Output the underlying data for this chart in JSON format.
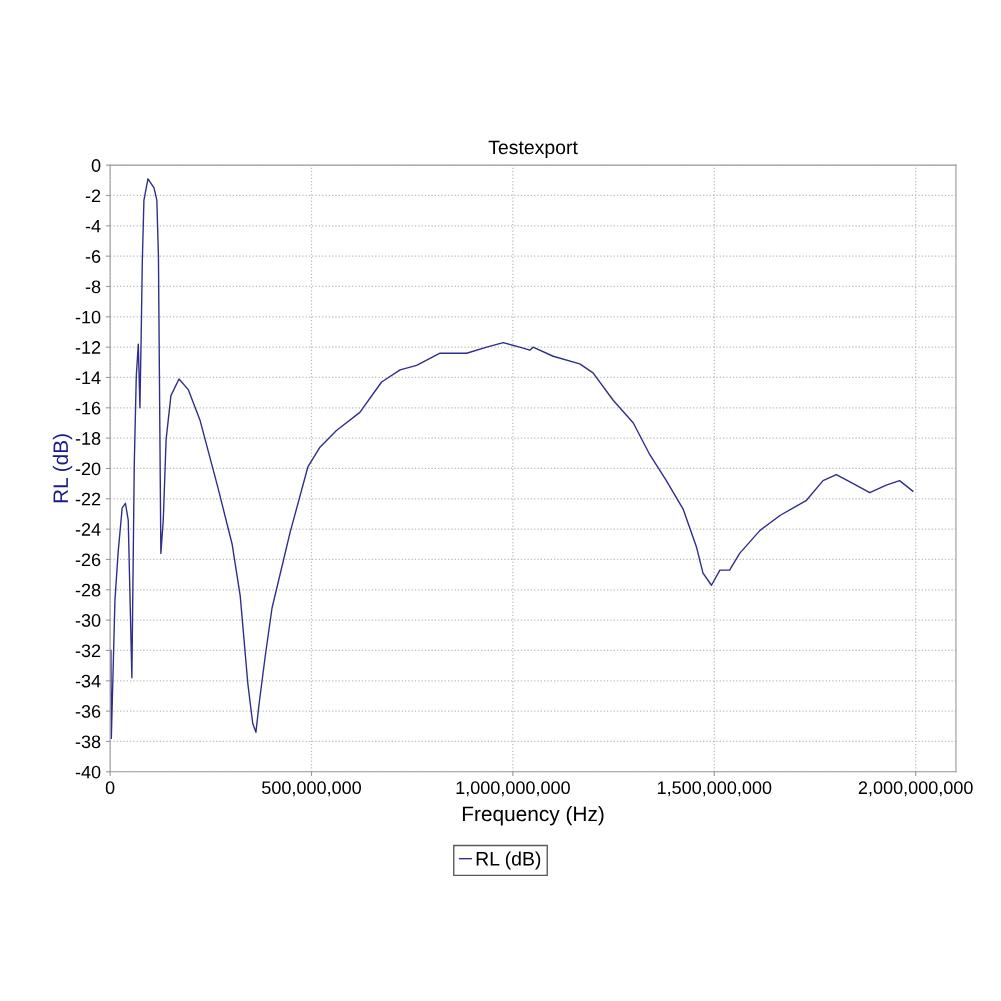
{
  "chart_data": {
    "type": "line",
    "title": "Testexport",
    "xlabel": "Frequency (Hz)",
    "ylabel": "RL (dB)",
    "x": [
      2000000,
      3000000,
      12000000,
      20000000,
      30000000,
      38000000,
      45000000,
      54000000,
      60000000,
      65000000,
      70000000,
      74000000,
      77000000,
      80000000,
      84000000,
      94000000,
      109000000,
      116000000,
      120000000,
      126000000,
      132000000,
      139000000,
      151000000,
      171000000,
      194000000,
      223000000,
      268000000,
      303000000,
      323000000,
      342000000,
      354000000,
      362000000,
      370000000,
      385000000,
      402000000,
      447000000,
      491000000,
      521000000,
      562000000,
      620000000,
      674000000,
      720000000,
      761000000,
      819000000,
      885000000,
      935000000,
      976000000,
      1017000000,
      1042000000,
      1050000000,
      1100000000,
      1166000000,
      1199000000,
      1249000000,
      1299000000,
      1338000000,
      1381000000,
      1423000000,
      1456000000,
      1472000000,
      1493000000,
      1514000000,
      1538000000,
      1563000000,
      1613000000,
      1663000000,
      1729000000,
      1770000000,
      1803000000,
      1845000000,
      1886000000,
      1927000000,
      1960000000,
      1993000000
    ],
    "series": [
      {
        "name": "RL (dB)",
        "color": "#2e2e8a",
        "values": [
          -32.0,
          -37.8,
          -28.7,
          -25.5,
          -22.6,
          -22.3,
          -23.4,
          -33.8,
          -19.7,
          -13.9,
          -11.8,
          -16.0,
          -11.5,
          -6.3,
          -2.3,
          -0.9,
          -1.5,
          -2.3,
          -6.0,
          -25.6,
          -23.4,
          -18.1,
          -15.2,
          -14.1,
          -14.8,
          -16.8,
          -21.3,
          -25.0,
          -28.4,
          -34.2,
          -36.8,
          -37.4,
          -35.5,
          -32.4,
          -29.2,
          -24.2,
          -19.9,
          -18.6,
          -17.5,
          -16.3,
          -14.3,
          -13.5,
          -13.2,
          -12.4,
          -12.4,
          -12.0,
          -11.7,
          -12.0,
          -12.2,
          -12.0,
          -12.6,
          -13.1,
          -13.7,
          -15.5,
          -17.0,
          -19.0,
          -20.8,
          -22.7,
          -25.2,
          -26.9,
          -27.7,
          -26.7,
          -26.7,
          -25.6,
          -24.1,
          -23.1,
          -22.1,
          -20.8,
          -20.4,
          -21.0,
          -21.6,
          -21.1,
          -20.8,
          -21.5
        ]
      }
    ],
    "xlim": [
      0,
      2100000000
    ],
    "xticks": [
      {
        "value": 0,
        "label": "0"
      },
      {
        "value": 500000000,
        "label": "500,000,000"
      },
      {
        "value": 1000000000,
        "label": "1,000,000,000"
      },
      {
        "value": 1500000000,
        "label": "1,500,000,000"
      },
      {
        "value": 2000000000,
        "label": "2,000,000,000"
      }
    ],
    "ylim": [
      -40,
      0
    ],
    "yticks": [
      -40,
      -38,
      -36,
      -34,
      -32,
      -30,
      -28,
      -26,
      -24,
      -22,
      -20,
      -18,
      -16,
      -14,
      -12,
      -10,
      -8,
      -6,
      -4,
      -2,
      0
    ],
    "grid": true,
    "legend": "bottom",
    "marker": "none",
    "line_style": "solid"
  }
}
